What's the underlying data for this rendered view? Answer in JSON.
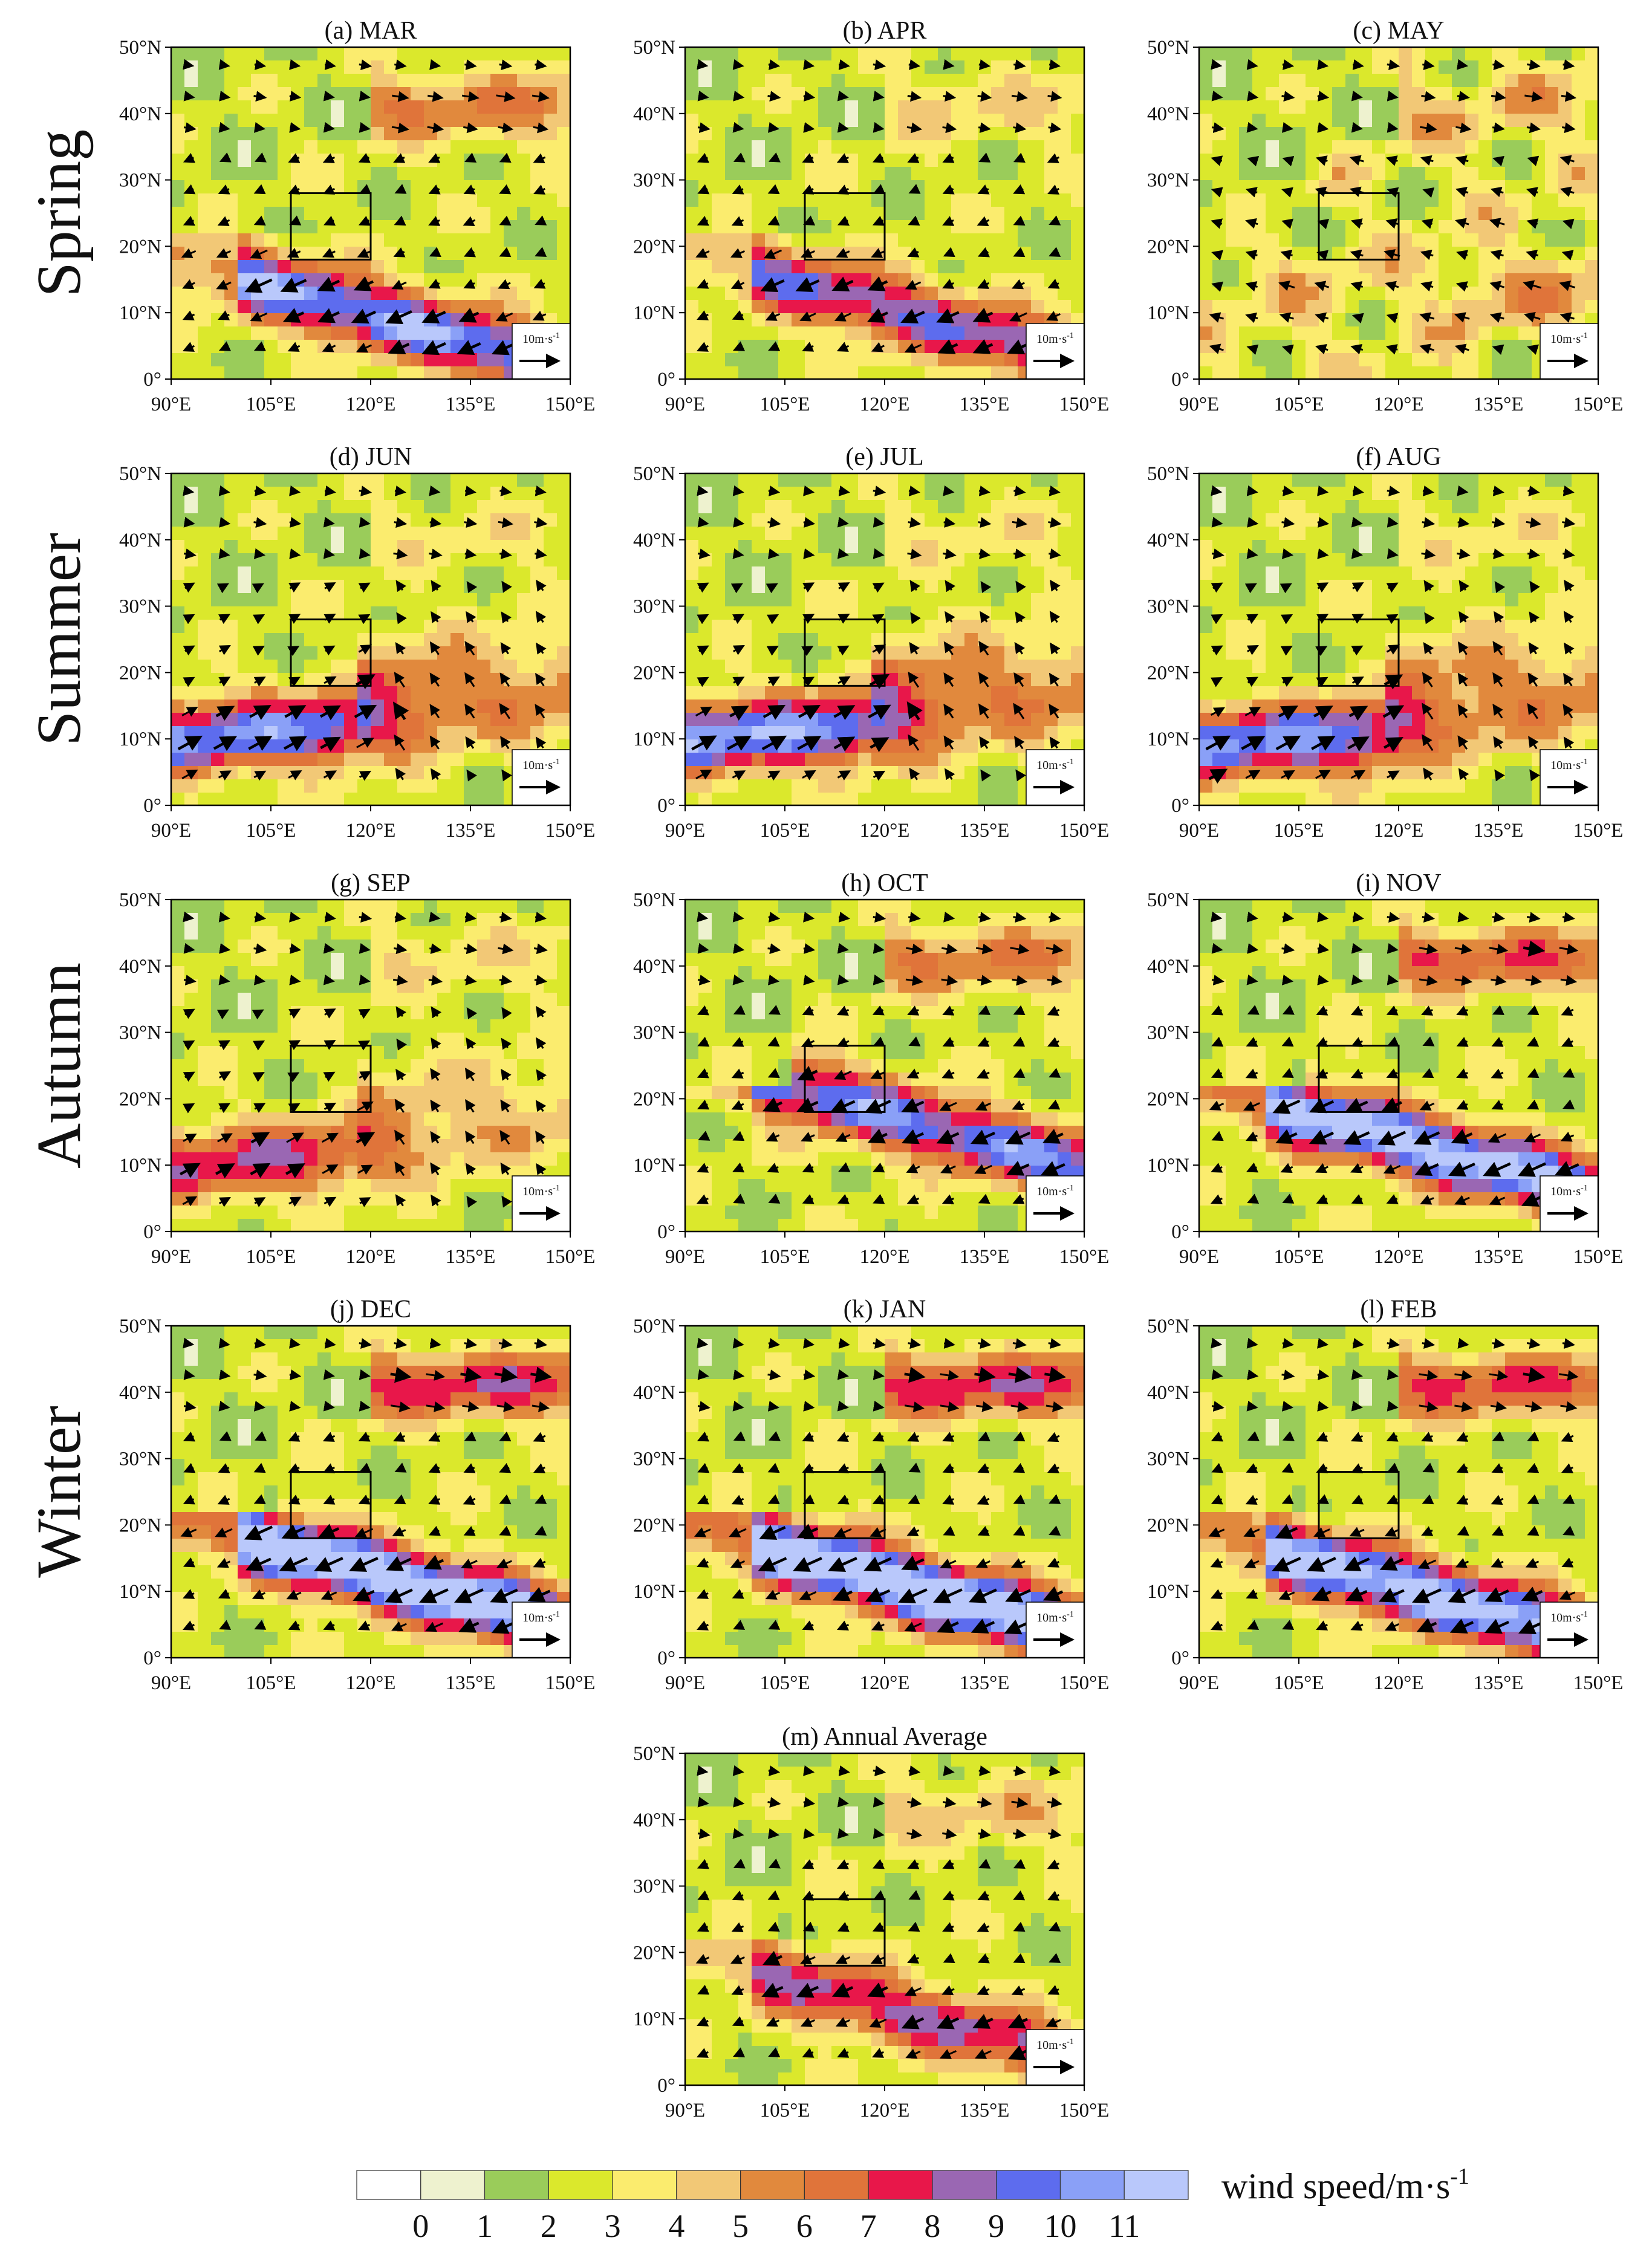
{
  "chart_data": {
    "type": "contour-vector-map",
    "description_variable": "wind speed",
    "colorbar": {
      "label": "wind speed/m·s",
      "label_sup": "-1",
      "ticks": [
        "0",
        "1",
        "2",
        "3",
        "4",
        "5",
        "6",
        "7",
        "8",
        "9",
        "10",
        "11"
      ],
      "colors": [
        "#ffffff",
        "#eef2cf",
        "#9acc5a",
        "#dbe82c",
        "#fbec6e",
        "#f2c876",
        "#e1893d",
        "#e0743a",
        "#e8174a",
        "#9a67b3",
        "#5d6cee",
        "#8aa0f7",
        "#b9c8fb"
      ]
    },
    "seasons": [
      "Spring",
      "Summer",
      "Autumn",
      "Winter"
    ],
    "lat_ticks": [
      "50°N",
      "40°N",
      "30°N",
      "20°N",
      "10°N",
      "0°"
    ],
    "lon_ticks": [
      "90°E",
      "105°E",
      "120°E",
      "135°E",
      "150°E"
    ],
    "lat_range": [
      0,
      50
    ],
    "lon_range": [
      90,
      150
    ],
    "study_box": {
      "lon": [
        108,
        120
      ],
      "lat": [
        18,
        28
      ]
    },
    "reference_vector": {
      "label": "10m·s",
      "label_sup": "-1",
      "magnitude": 10
    },
    "panels": [
      {
        "id": "a",
        "title": "(a) MAR",
        "season": "Spring",
        "pattern": "ne_band_s",
        "intensity": 0.78,
        "band_lat": 12,
        "north_jet": 0.55
      },
      {
        "id": "b",
        "title": "(b) APR",
        "season": "Spring",
        "pattern": "ne_band_s",
        "intensity": 0.62,
        "band_lat": 13,
        "north_jet": 0.25
      },
      {
        "id": "c",
        "title": "(c) MAY",
        "season": "Spring",
        "pattern": "weak",
        "intensity": 0.45,
        "band_lat": 13,
        "north_jet": 0.2
      },
      {
        "id": "d",
        "title": "(d) JUN",
        "season": "Summer",
        "pattern": "sw_monsoon",
        "intensity": 0.8,
        "band_lat": 10,
        "north_jet": 0.15
      },
      {
        "id": "e",
        "title": "(e) JUL",
        "season": "Summer",
        "pattern": "sw_monsoon",
        "intensity": 0.85,
        "band_lat": 10,
        "north_jet": 0.15
      },
      {
        "id": "f",
        "title": "(f) AUG",
        "season": "Summer",
        "pattern": "sw_monsoon",
        "intensity": 0.8,
        "band_lat": 9,
        "north_jet": 0.15
      },
      {
        "id": "g",
        "title": "(g) SEP",
        "season": "Autumn",
        "pattern": "weak_sw",
        "intensity": 0.55,
        "band_lat": 10,
        "north_jet": 0.2
      },
      {
        "id": "h",
        "title": "(h) OCT",
        "season": "Autumn",
        "pattern": "ne_band_s",
        "intensity": 0.72,
        "band_lat": 20,
        "north_jet": 0.55
      },
      {
        "id": "i",
        "title": "(i) NOV",
        "season": "Autumn",
        "pattern": "ne_band_s",
        "intensity": 0.88,
        "band_lat": 16,
        "north_jet": 0.7
      },
      {
        "id": "j",
        "title": "(j) DEC",
        "season": "Winter",
        "pattern": "ne_band_s",
        "intensity": 0.98,
        "band_lat": 15,
        "north_jet": 0.85
      },
      {
        "id": "k",
        "title": "(k) JAN",
        "season": "Winter",
        "pattern": "ne_band_s",
        "intensity": 1.0,
        "band_lat": 14,
        "north_jet": 0.85
      },
      {
        "id": "l",
        "title": "(l) FEB",
        "season": "Winter",
        "pattern": "ne_band_s",
        "intensity": 0.9,
        "band_lat": 13,
        "north_jet": 0.75
      },
      {
        "id": "m",
        "title": "(m) Annual Average",
        "season": "",
        "pattern": "ne_band_s",
        "intensity": 0.55,
        "band_lat": 14,
        "north_jet": 0.3
      }
    ]
  }
}
